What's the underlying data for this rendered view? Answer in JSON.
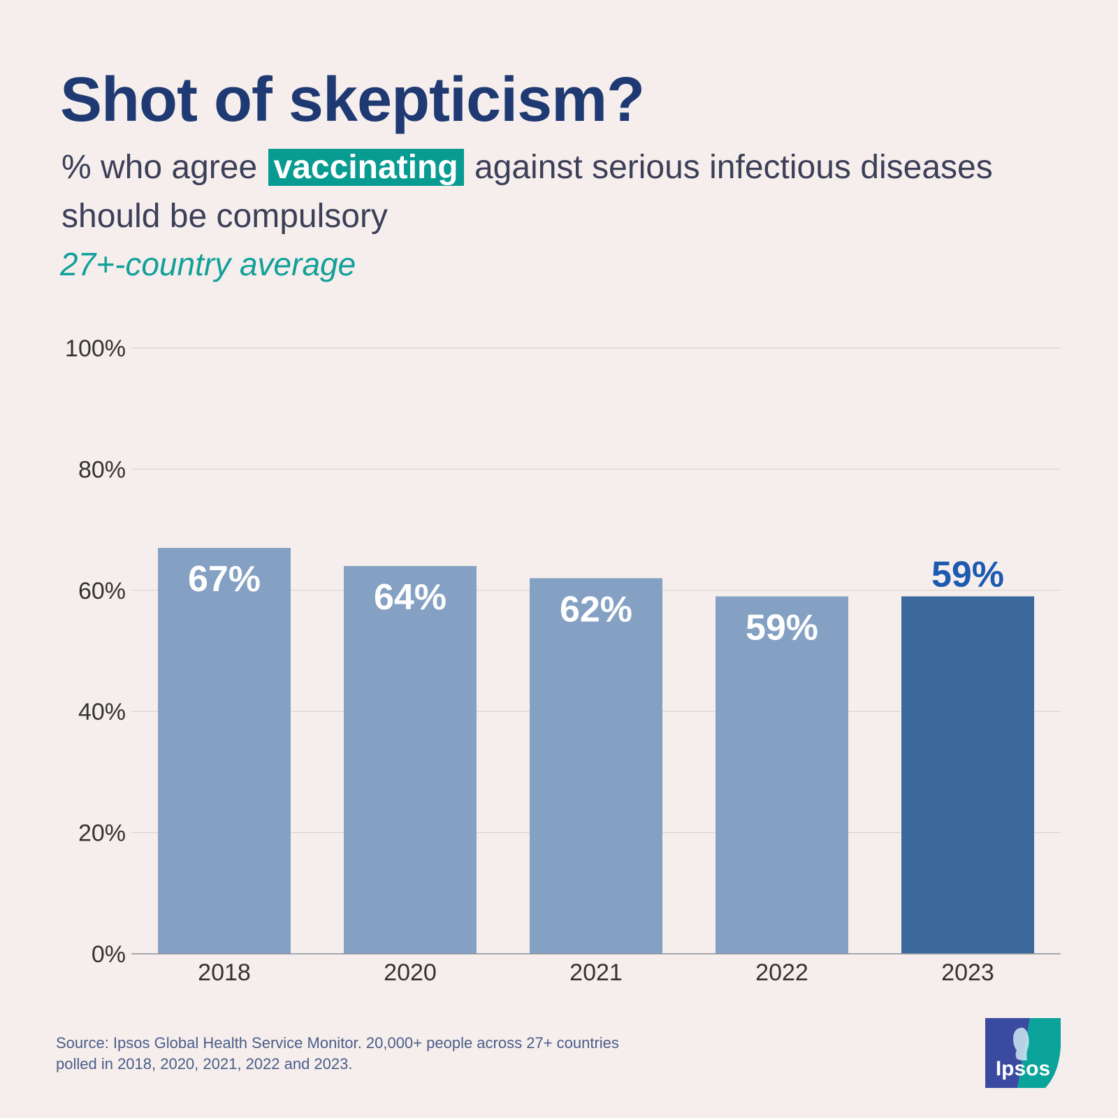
{
  "header": {
    "title": "Shot of skepticism?",
    "subtitle_pre": "% who agree",
    "subtitle_highlight": "vaccinating",
    "subtitle_post": "against serious infectious diseases should be compulsory",
    "note": "27+-country average"
  },
  "chart_data": {
    "type": "bar",
    "title": "Shot of skepticism?",
    "categories": [
      "2018",
      "2020",
      "2021",
      "2022",
      "2023"
    ],
    "values": [
      67,
      64,
      62,
      59,
      59
    ],
    "data_labels": [
      "67%",
      "64%",
      "62%",
      "59%",
      "59%"
    ],
    "y_ticks": [
      "0%",
      "20%",
      "40%",
      "60%",
      "80%",
      "100%"
    ],
    "ylim": [
      0,
      100
    ],
    "xlabel": "",
    "ylabel": "",
    "grid": true,
    "highlight_index": 4
  },
  "footer": {
    "source_line1": "Source: Ipsos Global Health Service Monitor. 20,000+ people across 27+ countries",
    "source_line2": "polled in 2018, 2020, 2021, 2022 and 2023.",
    "logo_text": "Ipsos"
  },
  "colors": {
    "background": "#f6eeec",
    "bar": "#84a1c4",
    "bar_highlight": "#3b699c",
    "label_highlight": "#1e5bb0",
    "label_inside": "#ffffff",
    "logo_blue": "#3a4aa0",
    "logo_teal": "#0aa39a"
  }
}
